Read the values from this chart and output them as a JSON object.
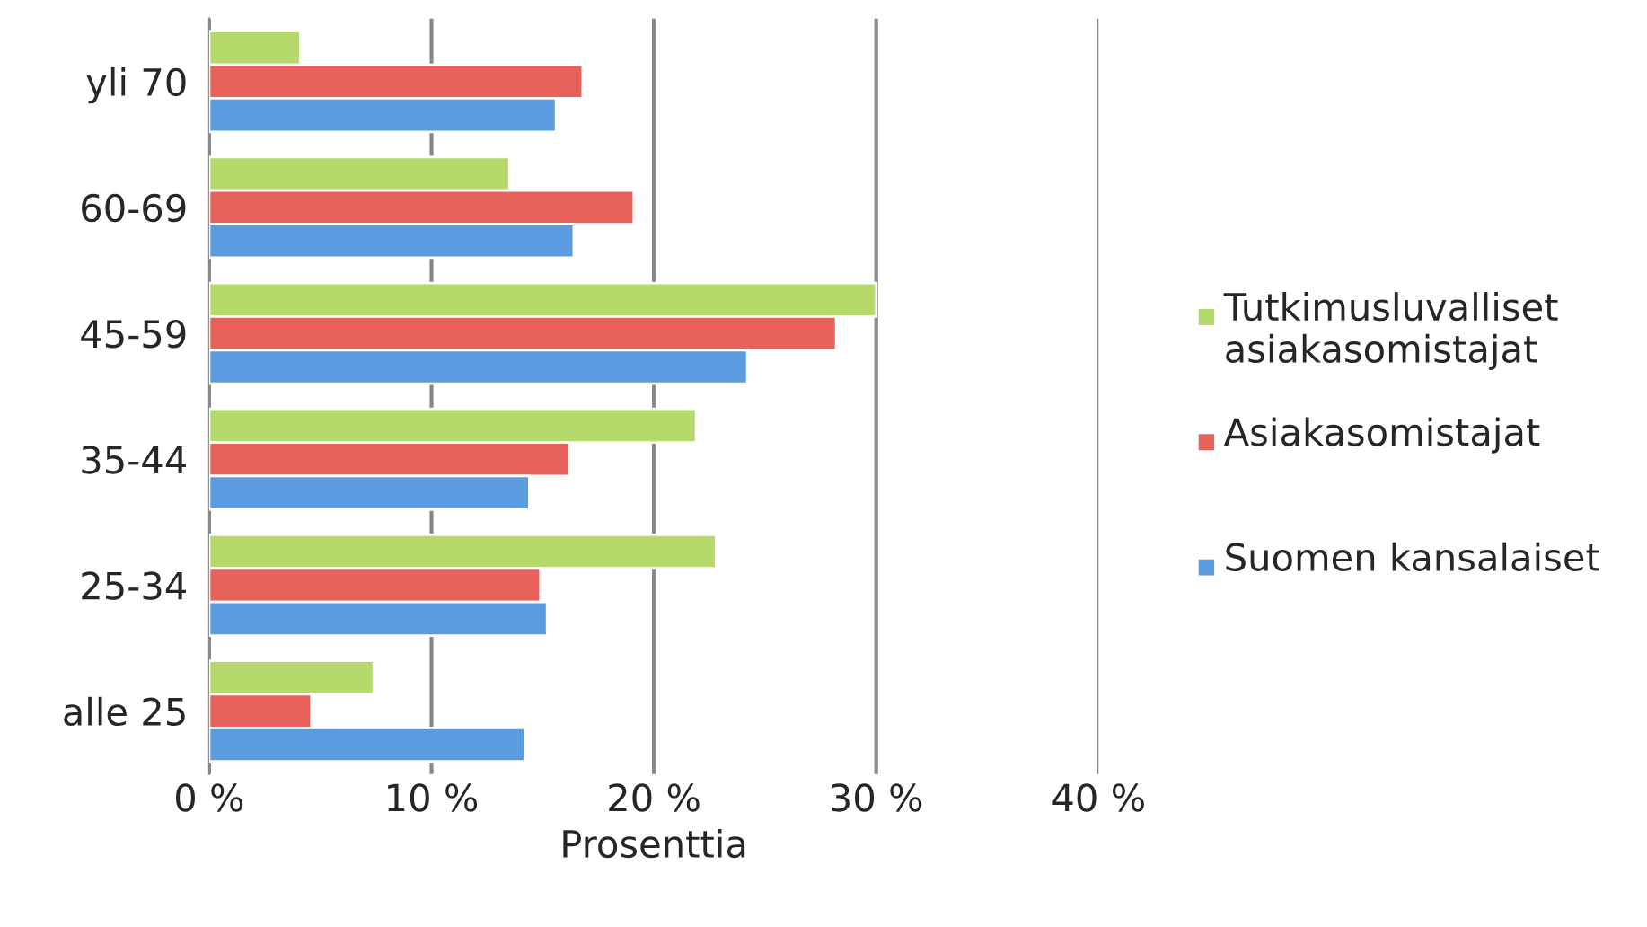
{
  "chart_data": {
    "type": "bar",
    "orientation": "horizontal",
    "xlabel": "Prosenttia",
    "categories": [
      "yli 70",
      "60-69",
      "45-59",
      "35-44",
      "25-34",
      "alle 25"
    ],
    "series": [
      {
        "name": "Tutkimusluvalliset asiakasomistajat",
        "color": "#b5d96a",
        "values": [
          4.1,
          13.5,
          30.0,
          21.9,
          22.8,
          7.4
        ]
      },
      {
        "name": "Asiakasomistajat",
        "color": "#e8625c",
        "values": [
          16.8,
          19.1,
          28.2,
          16.2,
          14.9,
          4.6
        ]
      },
      {
        "name": "Suomen kansalaiset",
        "color": "#5b9be0",
        "values": [
          15.6,
          16.4,
          24.2,
          14.4,
          15.2,
          14.2
        ]
      }
    ],
    "xlim": [
      0,
      40
    ],
    "xticks": [
      {
        "value": 0,
        "label": "0 %"
      },
      {
        "value": 10,
        "label": "10 %"
      },
      {
        "value": 20,
        "label": "20 %"
      },
      {
        "value": 30,
        "label": "30 %"
      },
      {
        "value": 40,
        "label": "40 %"
      }
    ],
    "grid": "x",
    "legend": "right"
  }
}
